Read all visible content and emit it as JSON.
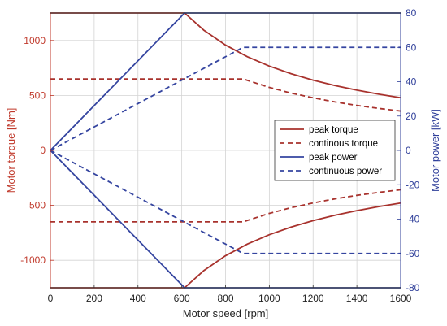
{
  "chart_data": {
    "type": "line",
    "title": "",
    "xlabel": "Motor speed [rpm]",
    "ylabel_left": "Motor torque [Nm]",
    "ylabel_right": "Motor power [kW]",
    "xlim": [
      0,
      1600
    ],
    "ylim_left": [
      -1250,
      1250
    ],
    "ylim_right": [
      -80,
      80
    ],
    "x_ticks": [
      0,
      200,
      400,
      600,
      800,
      1000,
      1200,
      1400,
      1600
    ],
    "y_ticks_left": [
      -1000,
      -500,
      0,
      500,
      1000
    ],
    "y_ticks_right": [
      -80,
      -60,
      -40,
      -20,
      0,
      20,
      40,
      60,
      80
    ],
    "grid": true,
    "legend_position": "center-right",
    "colors": {
      "torque": "#a8322d",
      "power": "#3545a0",
      "left_axis": "#c0392b",
      "right_axis": "#2f3f9a"
    },
    "series": [
      {
        "name": "peak torque",
        "axis": "left",
        "style": "solid",
        "color": "#a8322d",
        "x": [
          0,
          613,
          700,
          800,
          900,
          1000,
          1100,
          1200,
          1300,
          1400,
          1500,
          1600
        ],
        "y": [
          1250,
          1250,
          1095,
          958,
          852,
          767,
          697,
          639,
          590,
          548,
          511,
          479
        ]
      },
      {
        "name": "continous torque",
        "axis": "left",
        "style": "dashed",
        "color": "#a8322d",
        "x": [
          0,
          880,
          900,
          1000,
          1100,
          1200,
          1300,
          1400,
          1500,
          1600
        ],
        "y": [
          650,
          650,
          637,
          573,
          521,
          478,
          441,
          409,
          382,
          358
        ]
      },
      {
        "name": "peak power",
        "axis": "right",
        "style": "solid",
        "color": "#3545a0",
        "x": [
          0,
          613,
          1600
        ],
        "y": [
          0,
          80,
          80
        ]
      },
      {
        "name": "continuous power",
        "axis": "right",
        "style": "dashed",
        "color": "#3545a0",
        "x": [
          0,
          880,
          1600
        ],
        "y": [
          0,
          60,
          60
        ]
      },
      {
        "axis": "left",
        "style": "solid",
        "color": "#a8322d",
        "x": [
          0,
          613,
          700,
          800,
          900,
          1000,
          1100,
          1200,
          1300,
          1400,
          1500,
          1600
        ],
        "y": [
          -1250,
          -1250,
          -1095,
          -958,
          -852,
          -767,
          -697,
          -639,
          -590,
          -548,
          -511,
          -479
        ]
      },
      {
        "axis": "left",
        "style": "dashed",
        "color": "#a8322d",
        "x": [
          0,
          880,
          900,
          1000,
          1100,
          1200,
          1300,
          1400,
          1500,
          1600
        ],
        "y": [
          -650,
          -650,
          -637,
          -573,
          -521,
          -478,
          -441,
          -409,
          -382,
          -358
        ]
      },
      {
        "axis": "right",
        "style": "solid",
        "color": "#3545a0",
        "x": [
          0,
          613,
          1600
        ],
        "y": [
          0,
          -80,
          -80
        ]
      },
      {
        "axis": "right",
        "style": "dashed",
        "color": "#3545a0",
        "x": [
          0,
          880,
          1600
        ],
        "y": [
          0,
          -60,
          -60
        ]
      }
    ]
  }
}
